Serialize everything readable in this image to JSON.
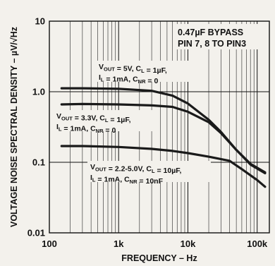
{
  "chart_data": {
    "type": "line",
    "title_lines": [
      "0.47µF BYPASS",
      "PIN 7, 8 TO PIN3"
    ],
    "xlabel": "FREQUENCY – Hz",
    "ylabel": "VOLTAGE NOISE SPECTRAL DENSITY – µV/√Hz",
    "xscale": "log",
    "yscale": "log",
    "xlim": [
      100,
      150000
    ],
    "ylim": [
      0.01,
      10
    ],
    "xticks": [
      {
        "value": 100,
        "label": "100"
      },
      {
        "value": 1000,
        "label": "1k"
      },
      {
        "value": 10000,
        "label": "10k"
      },
      {
        "value": 100000,
        "label": "100k"
      }
    ],
    "yticks": [
      {
        "value": 10,
        "label": "10"
      },
      {
        "value": 1,
        "label": "1.0"
      },
      {
        "value": 0.1,
        "label": "0.1"
      },
      {
        "value": 0.01,
        "label": "0.01"
      }
    ],
    "grid": true,
    "series": [
      {
        "label_lines": [
          [
            {
              "t": "V"
            },
            {
              "t": "OUT",
              "sub": true
            },
            {
              "t": " = 5V, C"
            },
            {
              "t": "L",
              "sub": true
            },
            {
              "t": " = 1µF,"
            }
          ],
          [
            {
              "t": "I"
            },
            {
              "t": "L",
              "sub": true
            },
            {
              "t": " = 1mA, C"
            },
            {
              "t": "NR",
              "sub": true
            },
            {
              "t": " = 0"
            }
          ]
        ],
        "points": [
          [
            150,
            1.12
          ],
          [
            300,
            1.12
          ],
          [
            1000,
            1.1
          ],
          [
            3000,
            1.03
          ],
          [
            6000,
            0.88
          ],
          [
            10000,
            0.68
          ],
          [
            20000,
            0.4
          ],
          [
            30000,
            0.27
          ],
          [
            50000,
            0.15
          ],
          [
            80000,
            0.095
          ],
          [
            130000,
            0.072
          ]
        ]
      },
      {
        "label_lines": [
          [
            {
              "t": "V"
            },
            {
              "t": "OUT",
              "sub": true
            },
            {
              "t": " = 3.3V, C"
            },
            {
              "t": "L",
              "sub": true
            },
            {
              "t": " = 1µF,"
            }
          ],
          [
            {
              "t": "I"
            },
            {
              "t": "L",
              "sub": true
            },
            {
              "t": " = 1mA, C"
            },
            {
              "t": "NR",
              "sub": true
            },
            {
              "t": " = 0"
            }
          ]
        ],
        "points": [
          [
            150,
            0.66
          ],
          [
            300,
            0.67
          ],
          [
            1000,
            0.66
          ],
          [
            3000,
            0.64
          ],
          [
            6000,
            0.61
          ],
          [
            10000,
            0.52
          ],
          [
            20000,
            0.37
          ],
          [
            30000,
            0.26
          ],
          [
            50000,
            0.15
          ],
          [
            80000,
            0.093
          ],
          [
            130000,
            0.07
          ]
        ]
      },
      {
        "label_lines": [
          [
            {
              "t": "V"
            },
            {
              "t": "OUT",
              "sub": true
            },
            {
              "t": " = 2.2-5.0V, C"
            },
            {
              "t": "L",
              "sub": true
            },
            {
              "t": " = 10µF,"
            }
          ],
          [
            {
              "t": "I"
            },
            {
              "t": "L",
              "sub": true
            },
            {
              "t": " = 1mA, C"
            },
            {
              "t": "NR",
              "sub": true
            },
            {
              "t": " = 10nF"
            }
          ]
        ],
        "points": [
          [
            150,
            0.17
          ],
          [
            300,
            0.17
          ],
          [
            1000,
            0.165
          ],
          [
            3000,
            0.155
          ],
          [
            6000,
            0.145
          ],
          [
            10000,
            0.135
          ],
          [
            20000,
            0.12
          ],
          [
            40000,
            0.105
          ],
          [
            60000,
            0.08
          ],
          [
            100000,
            0.056
          ],
          [
            130000,
            0.045
          ]
        ]
      }
    ]
  }
}
